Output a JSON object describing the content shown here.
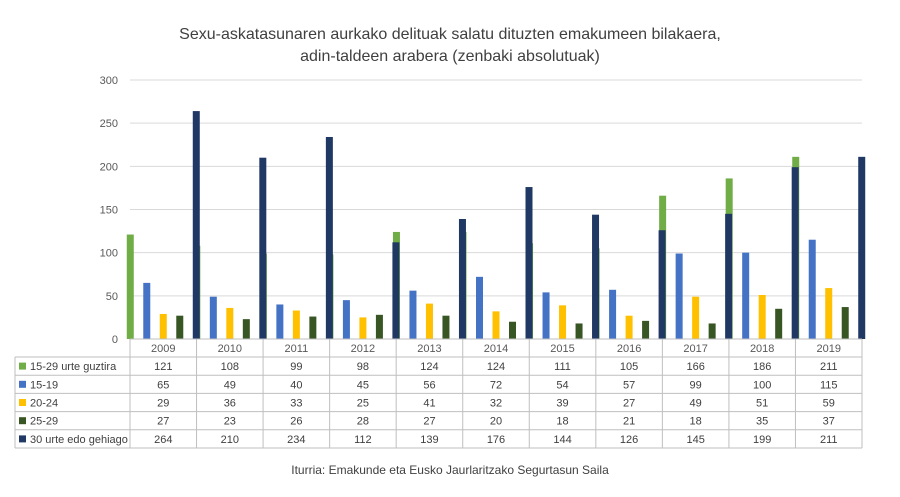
{
  "chart_data": {
    "type": "bar",
    "title_lines": [
      "Sexu-askatasunaren aurkako delituak salatu dituzten emakumeen bilakaera,",
      "adin-taldeen arabera (zenbaki absolutuak)"
    ],
    "categories": [
      "2009",
      "2010",
      "2011",
      "2012",
      "2013",
      "2014",
      "2015",
      "2016",
      "2017",
      "2018",
      "2019"
    ],
    "series": [
      {
        "name": "15-29 urte guztira",
        "color": "#70ad47",
        "values": [
          121,
          108,
          99,
          98,
          124,
          124,
          111,
          105,
          166,
          186,
          211
        ]
      },
      {
        "name": "15-19",
        "color": "#4472c4",
        "values": [
          65,
          49,
          40,
          45,
          56,
          72,
          54,
          57,
          99,
          100,
          115
        ]
      },
      {
        "name": "20-24",
        "color": "#ffc000",
        "values": [
          29,
          36,
          33,
          25,
          41,
          32,
          39,
          27,
          49,
          51,
          59
        ]
      },
      {
        "name": "25-29",
        "color": "#375623",
        "values": [
          27,
          23,
          26,
          28,
          27,
          20,
          18,
          21,
          18,
          35,
          37
        ]
      },
      {
        "name": "30 urte edo gehiago",
        "color": "#203864",
        "values": [
          264,
          210,
          234,
          112,
          139,
          176,
          144,
          126,
          145,
          199,
          211
        ]
      }
    ],
    "y_ticks": [
      "0",
      "50",
      "100",
      "150",
      "200",
      "250",
      "300"
    ],
    "ylim": [
      0,
      300
    ],
    "grid": true,
    "legend": "data-table-below",
    "source": "Iturria: Emakunde eta Eusko Jaurlaritzako Segurtasun Saila"
  }
}
